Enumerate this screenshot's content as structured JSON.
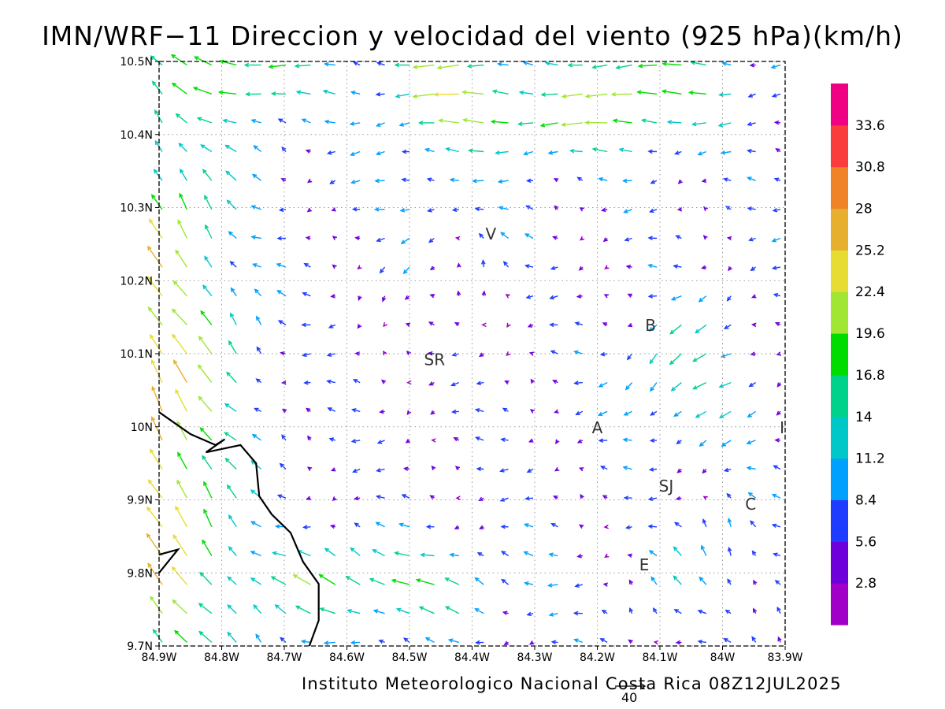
{
  "title": "IMN/WRF−11 Direccion y velocidad del viento (925 hPa)(km/h)",
  "credit": "Instituto Meteorologico Nacional Costa Rica 08Z12JUL2025",
  "reference_vector": {
    "label": "40",
    "speed_kmh": 40
  },
  "map": {
    "lon_range": [
      -84.9,
      -83.9
    ],
    "lat_range": [
      9.7,
      10.5
    ],
    "x_ticks": [
      {
        "lon": -84.9,
        "label": "84.9W"
      },
      {
        "lon": -84.8,
        "label": "84.8W"
      },
      {
        "lon": -84.7,
        "label": "84.7W"
      },
      {
        "lon": -84.6,
        "label": "84.6W"
      },
      {
        "lon": -84.5,
        "label": "84.5W"
      },
      {
        "lon": -84.4,
        "label": "84.4W"
      },
      {
        "lon": -84.3,
        "label": "84.3W"
      },
      {
        "lon": -84.2,
        "label": "84.2W"
      },
      {
        "lon": -84.1,
        "label": "84.1W"
      },
      {
        "lon": -84.0,
        "label": "84W"
      },
      {
        "lon": -83.9,
        "label": "83.9W"
      }
    ],
    "y_ticks": [
      {
        "lat": 9.7,
        "label": "9.7N"
      },
      {
        "lat": 9.8,
        "label": "9.8N"
      },
      {
        "lat": 9.9,
        "label": "9.9N"
      },
      {
        "lat": 10.0,
        "label": "10N"
      },
      {
        "lat": 10.1,
        "label": "10.1N"
      },
      {
        "lat": 10.2,
        "label": "10.2N"
      },
      {
        "lat": 10.3,
        "label": "10.3N"
      },
      {
        "lat": 10.4,
        "label": "10.4N"
      },
      {
        "lat": 10.5,
        "label": "10.5N"
      }
    ],
    "places": [
      {
        "label": "V",
        "lon": -84.37,
        "lat": 10.265
      },
      {
        "label": "B",
        "lon": -84.115,
        "lat": 10.14
      },
      {
        "label": "SR",
        "lon": -84.46,
        "lat": 10.093
      },
      {
        "label": "A",
        "lon": -84.2,
        "lat": 10.0
      },
      {
        "label": "I",
        "lon": -83.905,
        "lat": 10.0
      },
      {
        "label": "SJ",
        "lon": -84.09,
        "lat": 9.92
      },
      {
        "label": "C",
        "lon": -83.955,
        "lat": 9.895
      },
      {
        "label": "E",
        "lon": -84.125,
        "lat": 9.812
      }
    ],
    "coastline": [
      [
        -84.9,
        10.02
      ],
      [
        -84.85,
        9.99
      ],
      [
        -84.81,
        9.975
      ],
      [
        -84.795,
        9.983
      ],
      [
        -84.825,
        9.965
      ],
      [
        -84.77,
        9.975
      ],
      [
        -84.745,
        9.95
      ],
      [
        -84.74,
        9.905
      ],
      [
        -84.72,
        9.88
      ],
      [
        -84.69,
        9.855
      ],
      [
        -84.67,
        9.815
      ],
      [
        -84.645,
        9.785
      ],
      [
        -84.645,
        9.735
      ],
      [
        -84.66,
        9.7
      ]
    ],
    "coastline2": [
      [
        -84.9,
        9.825
      ],
      [
        -84.87,
        9.832
      ],
      [
        -84.9,
        9.8
      ]
    ]
  },
  "colorbar": {
    "colors": [
      "#a000c8",
      "#6e00dc",
      "#1e3cff",
      "#00a0ff",
      "#00c8c8",
      "#00d28c",
      "#00dc00",
      "#a0e632",
      "#e6dc32",
      "#e6af2d",
      "#f08228",
      "#fa3c3c",
      "#f00082"
    ],
    "labels": [
      "2.8",
      "5.6",
      "8.4",
      "11.2",
      "14",
      "16.8",
      "19.6",
      "22.4",
      "25.2",
      "28",
      "30.8",
      "33.6"
    ]
  },
  "wind_field": {
    "units": "km/h",
    "lon0": -84.9,
    "lat0": 9.7,
    "dlon": 0.02,
    "dlat": 0.02,
    "rows": []
  }
}
